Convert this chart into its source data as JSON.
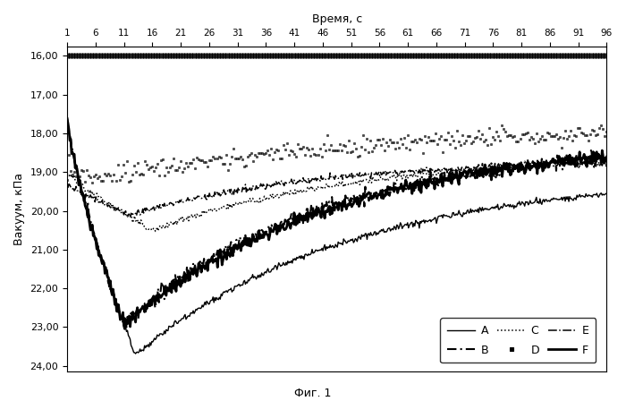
{
  "title_x": "Время, с",
  "title_y": "Вакуум, кПа",
  "caption": "Фиг. 1",
  "x_ticks": [
    1,
    6,
    11,
    16,
    21,
    26,
    31,
    36,
    41,
    46,
    51,
    56,
    61,
    66,
    71,
    76,
    81,
    86,
    91,
    96
  ],
  "y_ticks": [
    16.0,
    17.0,
    18.0,
    19.0,
    20.0,
    21.0,
    22.0,
    23.0,
    24.0
  ],
  "ylim_bottom": 24.15,
  "ylim_top": 15.75,
  "xlim": [
    1,
    96
  ],
  "background_color": "#ffffff"
}
